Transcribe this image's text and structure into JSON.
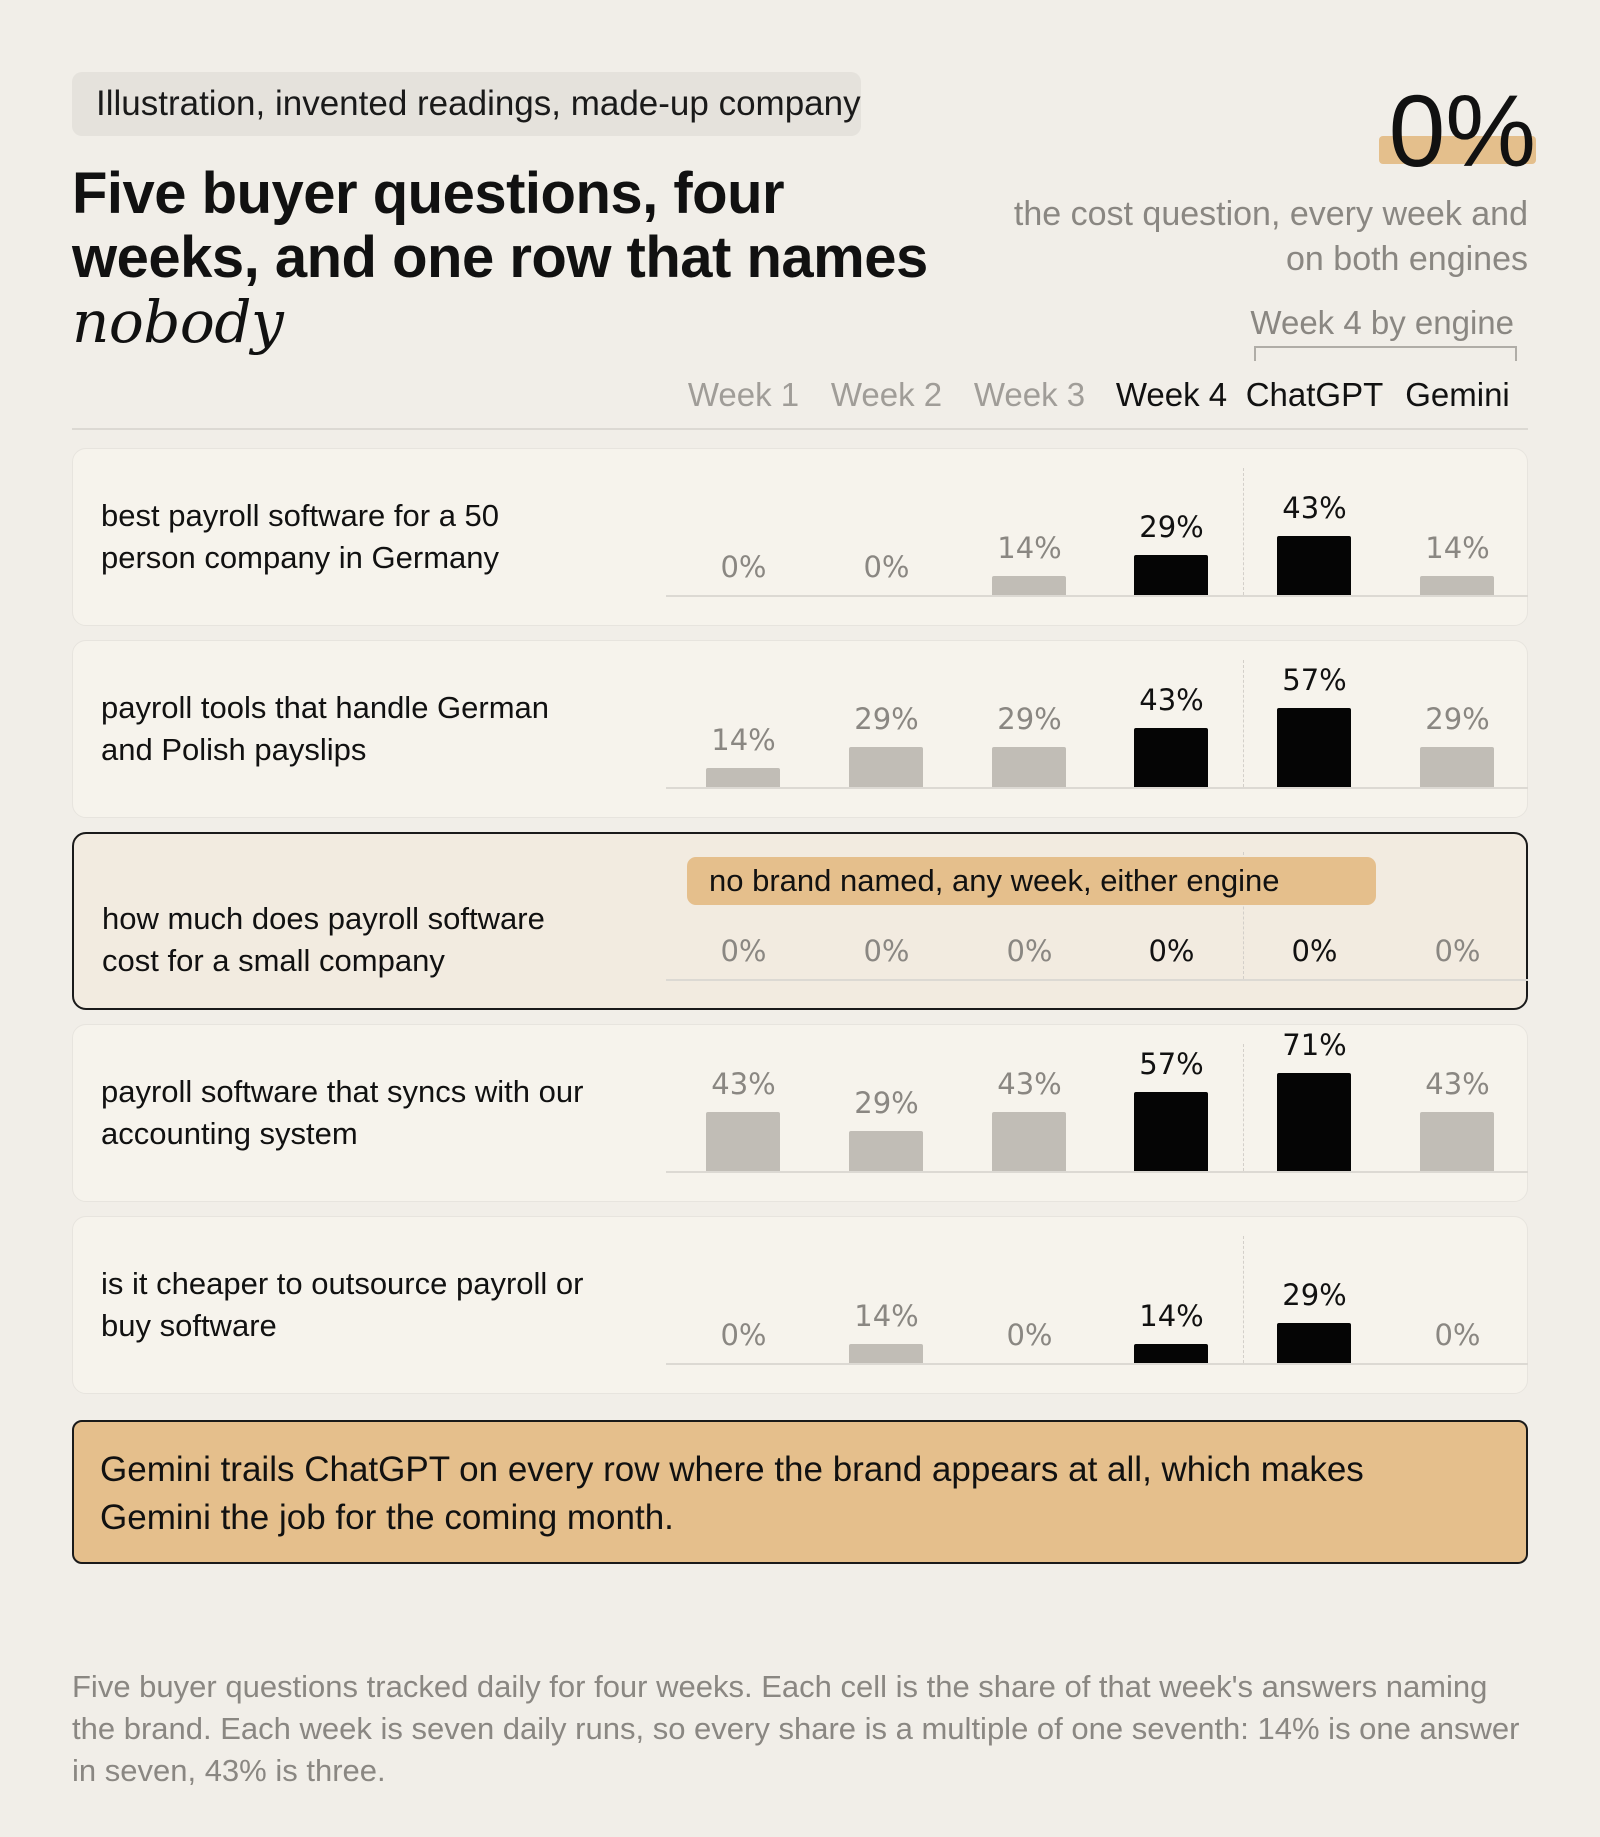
{
  "header": {
    "tag": "Illustration, invented readings, made-up company",
    "title_main": "Five buyer questions, four weeks, and one row that names ",
    "title_emphasis": "nobody"
  },
  "kpi": {
    "value": "0%",
    "note": "the cost question, every week and on both engines"
  },
  "chart_data": {
    "type": "bar",
    "title": "Five buyer questions, four weeks, and one row that names nobody",
    "group_label": "Week 4 by engine",
    "columns": [
      "Week 1",
      "Week 2",
      "Week 3",
      "Week 4",
      "ChatGPT",
      "Gemini"
    ],
    "ylim": [
      0,
      100
    ],
    "unit": "%",
    "rows": [
      {
        "question": "best payroll software for a 50 person company in Germany",
        "values": [
          0,
          0,
          14,
          29,
          43,
          14
        ],
        "labels": [
          "0%",
          "0%",
          "14%",
          "29%",
          "43%",
          "14%"
        ]
      },
      {
        "question": "payroll tools that handle German and Polish payslips",
        "values": [
          14,
          29,
          29,
          43,
          57,
          29
        ],
        "labels": [
          "14%",
          "29%",
          "29%",
          "43%",
          "57%",
          "29%"
        ]
      },
      {
        "question": "how much does payroll software cost for a small company",
        "values": [
          0,
          0,
          0,
          0,
          0,
          0
        ],
        "labels": [
          "0%",
          "0%",
          "0%",
          "0%",
          "0%",
          "0%"
        ],
        "annotation": "no brand named, any week, either engine"
      },
      {
        "question": "payroll software that syncs with our accounting system",
        "values": [
          43,
          29,
          43,
          57,
          71,
          43
        ],
        "labels": [
          "43%",
          "29%",
          "43%",
          "57%",
          "71%",
          "43%"
        ]
      },
      {
        "question": "is it cheaper to outsource payroll or buy software",
        "values": [
          0,
          14,
          0,
          14,
          29,
          0
        ],
        "labels": [
          "0%",
          "14%",
          "0%",
          "14%",
          "29%",
          "0%"
        ]
      }
    ]
  },
  "callout": {
    "text": "Gemini trails ChatGPT on every row where the brand appears at all, which makes Gemini the job for the coming month."
  },
  "footnote": "Five buyer questions tracked daily for four weeks. Each cell is the share of that week's answers naming the brand. Each week is seven daily runs, so every share is a multiple of one seventh: 14% is one answer in seven, 43% is three.",
  "colors": {
    "background": "#f1eee8",
    "accent": "#e5bf8c",
    "bar_grey": "#c1bdb6",
    "bar_dark": "#050505",
    "muted_text": "#8a8782"
  }
}
